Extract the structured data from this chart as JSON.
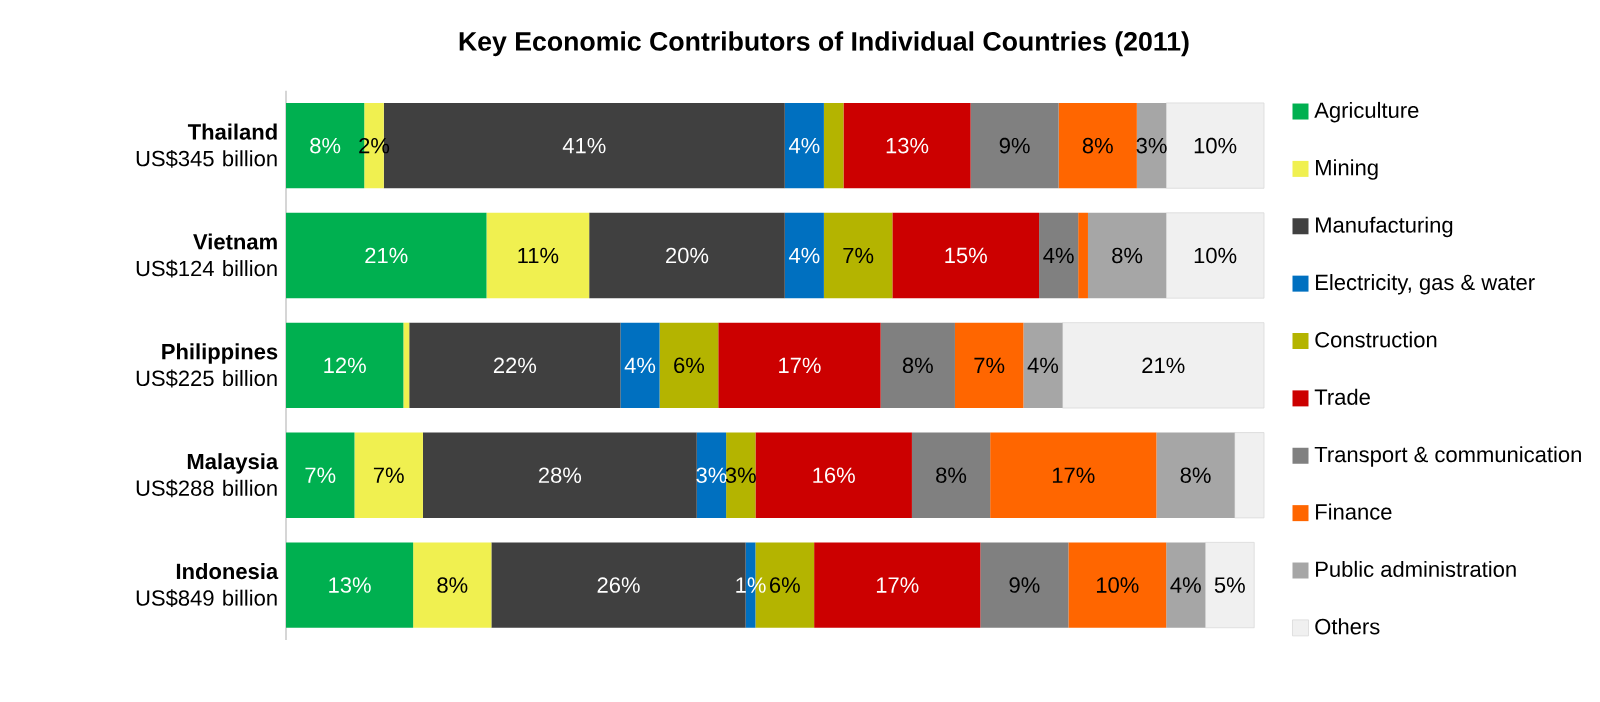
{
  "chart_data": {
    "type": "bar",
    "orientation": "horizontal",
    "stacked": true,
    "title": "Key Economic Contributors of Individual Countries (2011)",
    "categories": [
      "**Thailand** US$345 billion",
      "**Vietnam** US$124 billion",
      "**Philippines** US$225 billion",
      "**Malaysia** US$288 billion",
      "**Indonesia** US$849 billion"
    ],
    "xlim": [
      0,
      100
    ],
    "tick_labels": "y",
    "legend": "right",
    "series": [
      {
        "name": "Agriculture",
        "color": "#00b050",
        "values": [
          8,
          20.5,
          12,
          7,
          13
        ],
        "value_labels": [
          "8%",
          "21%",
          "12%",
          "7%",
          "13%"
        ]
      },
      {
        "name": "Mining",
        "color": "#f0f050",
        "values": [
          2,
          10.5,
          0.6,
          7,
          8
        ],
        "value_labels": [
          "2%",
          "11%",
          null,
          "7%",
          "8%"
        ]
      },
      {
        "name": "Manufacturing",
        "color": "#404040",
        "values": [
          41,
          20,
          21.6,
          28,
          26
        ],
        "value_labels": [
          "41%",
          "20%",
          "22%",
          "28%",
          "26%"
        ]
      },
      {
        "name": "Electricity, gas & water",
        "color": "#0070c0",
        "values": [
          4,
          4,
          4,
          3,
          1
        ],
        "value_labels": [
          "4%",
          "4%",
          "4%",
          "3%",
          "1%"
        ]
      },
      {
        "name": "Construction",
        "color": "#b4b400",
        "values": [
          2,
          7,
          6,
          3,
          6
        ],
        "value_labels": [
          null,
          "7%",
          "6%",
          "3%",
          "6%"
        ]
      },
      {
        "name": "Trade",
        "color": "#cc0000",
        "values": [
          13,
          15,
          16.6,
          16,
          17
        ],
        "value_labels": [
          "13%",
          "15%",
          "17%",
          "16%",
          "17%"
        ]
      },
      {
        "name": "Transport & communication",
        "color": "#808080",
        "values": [
          9,
          4,
          7.6,
          8,
          9
        ],
        "value_labels": [
          "9%",
          "4%",
          "8%",
          "8%",
          "9%"
        ]
      },
      {
        "name": "Finance",
        "color": "#ff6600",
        "values": [
          8,
          1,
          7,
          17,
          10
        ],
        "value_labels": [
          "8%",
          null,
          "7%",
          "17%",
          "10%"
        ]
      },
      {
        "name": "Public administration",
        "color": "#a6a6a6",
        "values": [
          3,
          8,
          4,
          8,
          4
        ],
        "value_labels": [
          "3%",
          "8%",
          "4%",
          "8%",
          "4%"
        ]
      },
      {
        "name": "Others",
        "color": "#f0f0f0",
        "values": [
          10,
          10,
          20.6,
          3,
          5
        ],
        "value_labels": [
          "10%",
          "10%",
          "21%",
          null,
          "5%"
        ]
      }
    ]
  }
}
